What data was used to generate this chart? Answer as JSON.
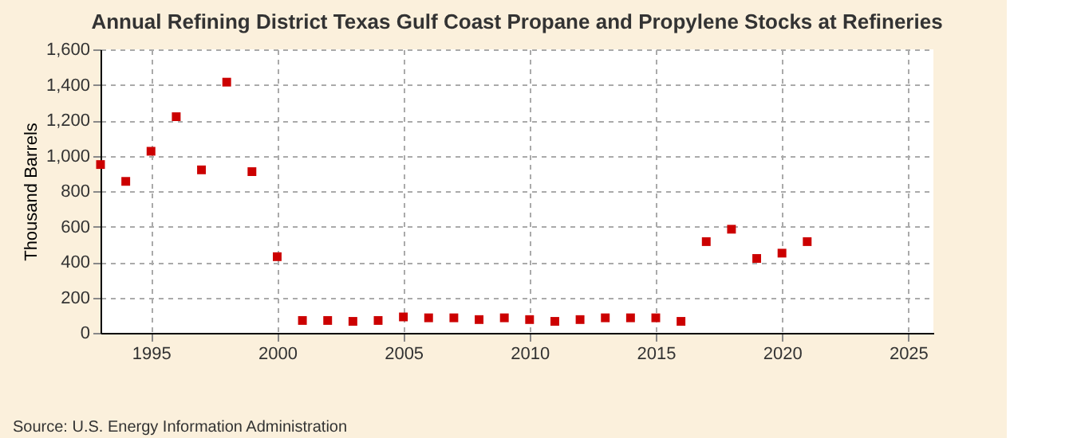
{
  "chart_data": {
    "type": "scatter",
    "title": "Annual Refining District Texas Gulf Coast Propane and Propylene Stocks at Refineries",
    "ylabel": "Thousand Barrels",
    "annotations": [
      "Source: U.S. Energy Information Administration"
    ],
    "x": [
      1993,
      1994,
      1995,
      1996,
      1997,
      1998,
      1999,
      2000,
      2001,
      2002,
      2003,
      2004,
      2005,
      2006,
      2007,
      2008,
      2009,
      2010,
      2011,
      2012,
      2013,
      2014,
      2015,
      2016,
      2017,
      2018,
      2019,
      2020,
      2021
    ],
    "series": [
      {
        "color": "#cc0000",
        "values": [
          950,
          855,
          1025,
          1220,
          920,
          1415,
          910,
          430,
          70,
          70,
          65,
          70,
          90,
          85,
          85,
          75,
          85,
          75,
          65,
          75,
          85,
          85,
          85,
          65,
          515,
          585,
          420,
          450,
          515
        ]
      }
    ],
    "xlim": [
      1993,
      2026
    ],
    "xticks": [
      1995,
      2000,
      2005,
      2010,
      2015,
      2020,
      2025
    ],
    "ylim": [
      0,
      1600
    ],
    "yticks": [
      {
        "value": 0,
        "label": "0"
      },
      {
        "value": 200,
        "label": "200"
      },
      {
        "value": 400,
        "label": "400"
      },
      {
        "value": 600,
        "label": "600"
      },
      {
        "value": 800,
        "label": "800"
      },
      {
        "value": 1000,
        "label": "1,000"
      },
      {
        "value": 1200,
        "label": "1,200"
      },
      {
        "value": 1400,
        "label": "1,400"
      },
      {
        "value": 1600,
        "label": "1,600"
      }
    ],
    "grid": true,
    "marker": "square",
    "legend": false
  }
}
